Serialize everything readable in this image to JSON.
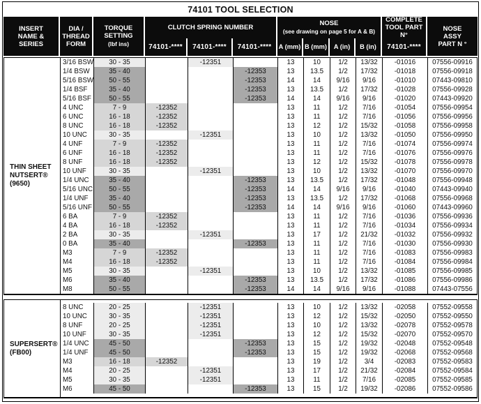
{
  "title": "74101 TOOL SELECTION",
  "header": {
    "insert": "INSERT\nNAME &\nSERIES",
    "dia": "DIA /\nTHREAD\nFORM",
    "torque": "TORQUE\nSETTING",
    "torque_unit": "(lbf ins)",
    "clutch": "CLUTCH SPRING NUMBER",
    "clutch_subs": [
      "74101-****",
      "74101-****",
      "74101-****"
    ],
    "nose": "NOSE",
    "nose_note": "(see drawing on page 5 for A & B)",
    "nose_subs": [
      "A (mm)",
      "B (mm)",
      "A (in)",
      "B (in)"
    ],
    "complete": "COMPLETE\nTOOL PART N°",
    "complete_sub": "74101-****",
    "nose_assy": "NOSE\nASSY\nPART N °"
  },
  "colors": {
    "header_bg": "#0c0c0c",
    "header_text": "#ffffff",
    "border": "#000000",
    "shade_12351_light": "#ececec",
    "shade_12352_medium": "#d6d6d6",
    "shade_12353_dark": "#a9a9a9"
  },
  "sections": [
    {
      "name": "THIN SHEET\nNUTSERT®\n(9650)",
      "rows": [
        {
          "thread": "3/16 BSW",
          "torque": "30 - 35",
          "clutch": [
            "",
            "-12351",
            ""
          ],
          "a_mm": "13",
          "b_mm": "10",
          "a_in": "1/2",
          "b_in": "13/32",
          "tool": "-01016",
          "nose_assy": "07556-09916"
        },
        {
          "thread": "1/4 BSW",
          "torque": "35 - 40",
          "clutch": [
            "",
            "",
            "-12353"
          ],
          "a_mm": "13",
          "b_mm": "13.5",
          "a_in": "1/2",
          "b_in": "17/32",
          "tool": "-01018",
          "nose_assy": "07556-09918"
        },
        {
          "thread": "5/16 BSW",
          "torque": "50 - 55",
          "clutch": [
            "",
            "",
            "-12353"
          ],
          "a_mm": "14",
          "b_mm": "14",
          "a_in": "9/16",
          "b_in": "9/16",
          "tool": "-01010",
          "nose_assy": "07443-09810"
        },
        {
          "thread": "1/4 BSF",
          "torque": "35 - 40",
          "clutch": [
            "",
            "",
            "-12353"
          ],
          "a_mm": "13",
          "b_mm": "13.5",
          "a_in": "1/2",
          "b_in": "17/32",
          "tool": "-01028",
          "nose_assy": "07556-09928"
        },
        {
          "thread": "5/16 BSF",
          "torque": "50 - 55",
          "clutch": [
            "",
            "",
            "-12353"
          ],
          "a_mm": "14",
          "b_mm": "14",
          "a_in": "9/16",
          "b_in": "9/16",
          "tool": "-01020",
          "nose_assy": "07443-09920"
        },
        {
          "thread": "4 UNC",
          "torque": "7 - 9",
          "clutch": [
            "-12352",
            "",
            ""
          ],
          "a_mm": "13",
          "b_mm": "11",
          "a_in": "1/2",
          "b_in": "7/16",
          "tool": "-01054",
          "nose_assy": "07556-09954"
        },
        {
          "thread": "6 UNC",
          "torque": "16 - 18",
          "clutch": [
            "-12352",
            "",
            ""
          ],
          "a_mm": "13",
          "b_mm": "11",
          "a_in": "1/2",
          "b_in": "7/16",
          "tool": "-01056",
          "nose_assy": "07556-09956"
        },
        {
          "thread": "8 UNC",
          "torque": "16 - 18",
          "clutch": [
            "-12352",
            "",
            ""
          ],
          "a_mm": "13",
          "b_mm": "12",
          "a_in": "1/2",
          "b_in": "15/32",
          "tool": "-01058",
          "nose_assy": "07556-09958"
        },
        {
          "thread": "10 UNC",
          "torque": "30 - 35",
          "clutch": [
            "",
            "-12351",
            ""
          ],
          "a_mm": "13",
          "b_mm": "10",
          "a_in": "1/2",
          "b_in": "13/32",
          "tool": "-01050",
          "nose_assy": "07556-09950"
        },
        {
          "thread": "4 UNF",
          "torque": "7 - 9",
          "clutch": [
            "-12352",
            "",
            ""
          ],
          "a_mm": "13",
          "b_mm": "11",
          "a_in": "1/2",
          "b_in": "7/16",
          "tool": "-01074",
          "nose_assy": "07556-09974"
        },
        {
          "thread": "6 UNF",
          "torque": "16 - 18",
          "clutch": [
            "-12352",
            "",
            ""
          ],
          "a_mm": "13",
          "b_mm": "11",
          "a_in": "1/2",
          "b_in": "7/16",
          "tool": "-01076",
          "nose_assy": "07556-09976"
        },
        {
          "thread": "8 UNF",
          "torque": "16 - 18",
          "clutch": [
            "-12352",
            "",
            ""
          ],
          "a_mm": "13",
          "b_mm": "12",
          "a_in": "1/2",
          "b_in": "15/32",
          "tool": "-01078",
          "nose_assy": "07556-09978"
        },
        {
          "thread": "10 UNF",
          "torque": "30 - 35",
          "clutch": [
            "",
            "-12351",
            ""
          ],
          "a_mm": "13",
          "b_mm": "10",
          "a_in": "1/2",
          "b_in": "13/32",
          "tool": "-01070",
          "nose_assy": "07556-09970"
        },
        {
          "thread": "1/4 UNC",
          "torque": "35 - 40",
          "clutch": [
            "",
            "",
            "-12353"
          ],
          "a_mm": "13",
          "b_mm": "13.5",
          "a_in": "1/2",
          "b_in": "17/32",
          "tool": "-01048",
          "nose_assy": "07556-09948"
        },
        {
          "thread": "5/16 UNC",
          "torque": "50 - 55",
          "clutch": [
            "",
            "",
            "-12353"
          ],
          "a_mm": "14",
          "b_mm": "14",
          "a_in": "9/16",
          "b_in": "9/16",
          "tool": "-01040",
          "nose_assy": "07443-09940"
        },
        {
          "thread": "1/4 UNF",
          "torque": "35 - 40",
          "clutch": [
            "",
            "",
            "-12353"
          ],
          "a_mm": "13",
          "b_mm": "13.5",
          "a_in": "1/2",
          "b_in": "17/32",
          "tool": "-01068",
          "nose_assy": "07556-09968"
        },
        {
          "thread": "5/16 UNF",
          "torque": "50 - 55",
          "clutch": [
            "",
            "",
            "-12353"
          ],
          "a_mm": "14",
          "b_mm": "14",
          "a_in": "9/16",
          "b_in": "9/16",
          "tool": "-01060",
          "nose_assy": "07443-09960"
        },
        {
          "thread": "6 BA",
          "torque": "7 - 9",
          "clutch": [
            "-12352",
            "",
            ""
          ],
          "a_mm": "13",
          "b_mm": "11",
          "a_in": "1/2",
          "b_in": "7/16",
          "tool": "-01036",
          "nose_assy": "07556-09936"
        },
        {
          "thread": "4 BA",
          "torque": "16 - 18",
          "clutch": [
            "-12352",
            "",
            ""
          ],
          "a_mm": "13",
          "b_mm": "11",
          "a_in": "1/2",
          "b_in": "7/16",
          "tool": "-01034",
          "nose_assy": "07556-09934"
        },
        {
          "thread": "2 BA",
          "torque": "30 - 35",
          "clutch": [
            "",
            "-12351",
            ""
          ],
          "a_mm": "13",
          "b_mm": "17",
          "a_in": "1/2",
          "b_in": "21/32",
          "tool": "-01032",
          "nose_assy": "07556-09932"
        },
        {
          "thread": "0 BA",
          "torque": "35 - 40",
          "clutch": [
            "",
            "",
            "-12353"
          ],
          "a_mm": "13",
          "b_mm": "11",
          "a_in": "1/2",
          "b_in": "7/16",
          "tool": "-01030",
          "nose_assy": "07556-09930"
        },
        {
          "thread": "M3",
          "torque": "7 - 9",
          "clutch": [
            "-12352",
            "",
            ""
          ],
          "a_mm": "13",
          "b_mm": "11",
          "a_in": "1/2",
          "b_in": "7/16",
          "tool": "-01083",
          "nose_assy": "07556-09983"
        },
        {
          "thread": "M4",
          "torque": "16 - 18",
          "clutch": [
            "-12352",
            "",
            ""
          ],
          "a_mm": "13",
          "b_mm": "11",
          "a_in": "1/2",
          "b_in": "7/16",
          "tool": "-01084",
          "nose_assy": "07556-09984"
        },
        {
          "thread": "M5",
          "torque": "30 - 35",
          "clutch": [
            "",
            "-12351",
            ""
          ],
          "a_mm": "13",
          "b_mm": "10",
          "a_in": "1/2",
          "b_in": "13/32",
          "tool": "-01085",
          "nose_assy": "07556-09985"
        },
        {
          "thread": "M6",
          "torque": "35 - 40",
          "clutch": [
            "",
            "",
            "-12353"
          ],
          "a_mm": "13",
          "b_mm": "13.5",
          "a_in": "1/2",
          "b_in": "17/32",
          "tool": "-01086",
          "nose_assy": "07556-09986"
        },
        {
          "thread": "M8",
          "torque": "50 - 55",
          "clutch": [
            "",
            "",
            "-12353"
          ],
          "a_mm": "14",
          "b_mm": "14",
          "a_in": "9/16",
          "b_in": "9/16",
          "tool": "-01088",
          "nose_assy": "07443-07556"
        }
      ]
    },
    {
      "name": "SUPERSERT®\n(FB00)",
      "rows": [
        {
          "thread": "8 UNC",
          "torque": "20 - 25",
          "clutch": [
            "",
            "-12351",
            ""
          ],
          "a_mm": "13",
          "b_mm": "10",
          "a_in": "1/2",
          "b_in": "13/32",
          "tool": "-02058",
          "nose_assy": "07552-09558"
        },
        {
          "thread": "10 UNC",
          "torque": "30 - 35",
          "clutch": [
            "",
            "-12351",
            ""
          ],
          "a_mm": "13",
          "b_mm": "12",
          "a_in": "1/2",
          "b_in": "15/32",
          "tool": "-02050",
          "nose_assy": "07552-09550"
        },
        {
          "thread": "8 UNF",
          "torque": "20 - 25",
          "clutch": [
            "",
            "-12351",
            ""
          ],
          "a_mm": "13",
          "b_mm": "10",
          "a_in": "1/2",
          "b_in": "13/32",
          "tool": "-02078",
          "nose_assy": "07552-09578"
        },
        {
          "thread": "10 UNF",
          "torque": "30 - 35",
          "clutch": [
            "",
            "-12351",
            ""
          ],
          "a_mm": "13",
          "b_mm": "12",
          "a_in": "1/2",
          "b_in": "15/32",
          "tool": "-02070",
          "nose_assy": "07552-09570"
        },
        {
          "thread": "1/4 UNC",
          "torque": "45 - 50",
          "clutch": [
            "",
            "",
            "-12353"
          ],
          "a_mm": "13",
          "b_mm": "15",
          "a_in": "1/2",
          "b_in": "19/32",
          "tool": "-02048",
          "nose_assy": "07552-09548"
        },
        {
          "thread": "1/4 UNF",
          "torque": "45 - 50",
          "clutch": [
            "",
            "",
            "-12353"
          ],
          "a_mm": "13",
          "b_mm": "15",
          "a_in": "1/2",
          "b_in": "19/32",
          "tool": "-02068",
          "nose_assy": "07552-09568"
        },
        {
          "thread": "M3",
          "torque": "16 - 18",
          "clutch": [
            "-12352",
            "",
            ""
          ],
          "a_mm": "13",
          "b_mm": "19",
          "a_in": "1/2",
          "b_in": "3/4",
          "tool": "-02083",
          "nose_assy": "07552-09583"
        },
        {
          "thread": "M4",
          "torque": "20 - 25",
          "clutch": [
            "",
            "-12351",
            ""
          ],
          "a_mm": "13",
          "b_mm": "17",
          "a_in": "1/2",
          "b_in": "21/32",
          "tool": "-02084",
          "nose_assy": "07552-09584"
        },
        {
          "thread": "M5",
          "torque": "30 - 35",
          "clutch": [
            "",
            "-12351",
            ""
          ],
          "a_mm": "13",
          "b_mm": "11",
          "a_in": "1/2",
          "b_in": "7/16",
          "tool": "-02085",
          "nose_assy": "07552-09585"
        },
        {
          "thread": "M6",
          "torque": "45 - 50",
          "clutch": [
            "",
            "",
            "-12353"
          ],
          "a_mm": "13",
          "b_mm": "15",
          "a_in": "1/2",
          "b_in": "19/32",
          "tool": "-02086",
          "nose_assy": "07552-09586"
        }
      ]
    }
  ]
}
